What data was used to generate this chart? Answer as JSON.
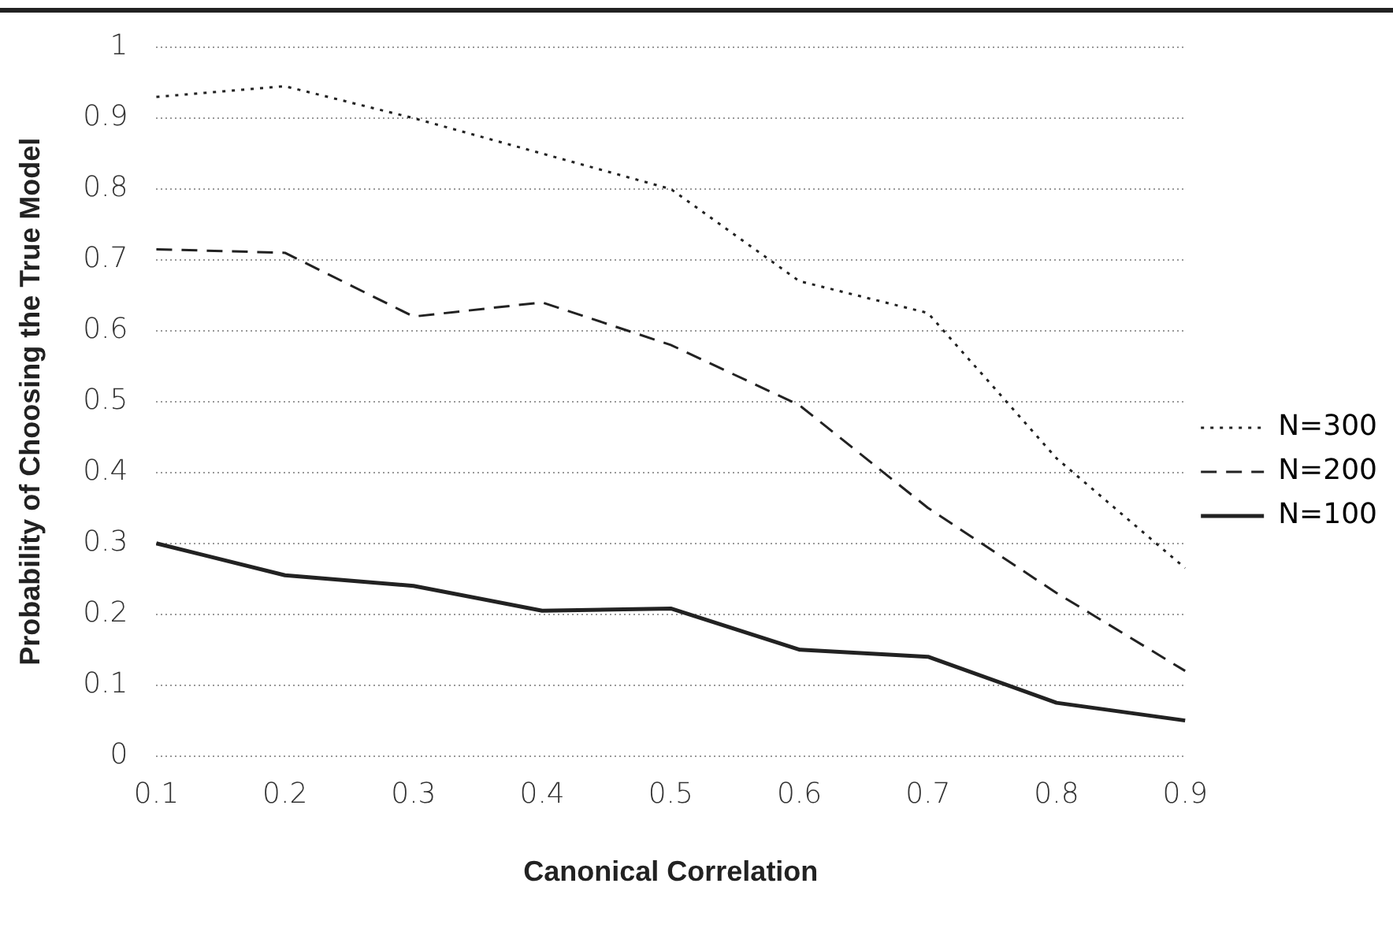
{
  "chart_data": {
    "type": "line",
    "xlabel": "Canonical Correlation",
    "ylabel": "Probability of Choosing the True Model",
    "categories": [
      "0.1",
      "0.2",
      "0.3",
      "0.4",
      "0.5",
      "0.6",
      "0.7",
      "0.8",
      "0.9"
    ],
    "series": [
      {
        "name": "N=300",
        "color": "#222222",
        "line_style": "dotted",
        "values": [
          0.93,
          0.945,
          0.9,
          0.85,
          0.8,
          0.67,
          0.625,
          0.42,
          0.265
        ]
      },
      {
        "name": "N=200",
        "color": "#222222",
        "line_style": "dashed",
        "values": [
          0.715,
          0.71,
          0.62,
          0.64,
          0.58,
          0.495,
          0.35,
          0.23,
          0.12
        ]
      },
      {
        "name": "N=100",
        "color": "#222222",
        "line_style": "solid",
        "values": [
          0.3,
          0.255,
          0.24,
          0.205,
          0.208,
          0.15,
          0.14,
          0.075,
          0.05
        ]
      }
    ],
    "ylim": [
      0,
      1
    ],
    "yticks": [
      0,
      0.1,
      0.2,
      0.3,
      0.4,
      0.5,
      0.6,
      0.7,
      0.8,
      0.9,
      1
    ],
    "grid": "y",
    "legend": "right",
    "marker": "none"
  }
}
